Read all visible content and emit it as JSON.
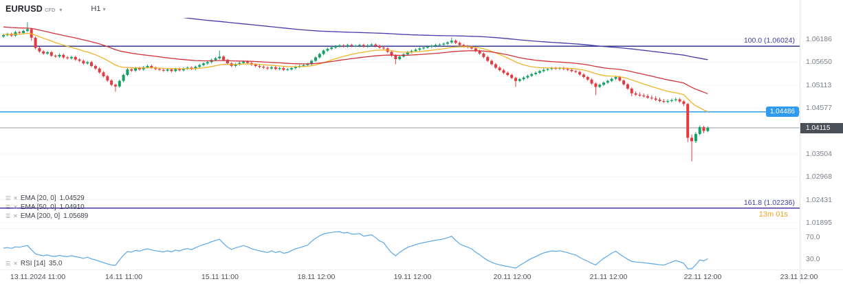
{
  "header": {
    "symbol": "EURUSD",
    "symbol_type": "CFD",
    "timeframe": "H1"
  },
  "price_axis": {
    "scale": [
      "1.06186",
      "1.05650",
      "1.05113",
      "1.04577",
      "1.03504",
      "1.02968",
      "1.02431",
      "1.01895"
    ],
    "current_price": "1.04115",
    "alert_price": "1.04486"
  },
  "rsi_axis": {
    "scale": [
      "70.0",
      "30.0"
    ]
  },
  "time_axis": {
    "labels": [
      "13.11.2024 11:00",
      "14.11 11:00",
      "15.11 11:00",
      "18.11 12:00",
      "19.11 12:00",
      "20.11 12:00",
      "21.11 12:00",
      "22.11 12:00",
      "23.11 12:00"
    ]
  },
  "indicators": [
    {
      "label": "EMA [20, 0]",
      "value": "1.04529"
    },
    {
      "label": "EMA [50, 0]",
      "value": "1.04910"
    },
    {
      "label": "EMA [200, 0]",
      "value": "1.05689"
    }
  ],
  "rsi_legend": {
    "label": "RSI [14]",
    "value": "35.0"
  },
  "levels_labels": {
    "fib_100": "100.0 (1.06024)",
    "fib_161": "161.8 (1.02236)"
  },
  "countdown": "13m 01s",
  "colors": {
    "candle_up": "#12a065",
    "candle_down": "#e23a3f",
    "accent_blue": "#2e9bf0",
    "badge_dark": "#4b4f58",
    "fib_navy": "#3c3f9e",
    "countdown_orange": "#f6a11a"
  },
  "chart_data": {
    "type": "candlestick",
    "title": "EURUSD CFD H1",
    "x_axis_labels": [
      "13.11.2024 11:00",
      "14.11 11:00",
      "15.11 11:00",
      "18.11 12:00",
      "19.11 12:00",
      "20.11 12:00",
      "21.11 12:00",
      "22.11 12:00",
      "23.11 12:00"
    ],
    "y_axis_ticks": [
      1.06186,
      1.0565,
      1.05113,
      1.04577,
      1.04115,
      1.03504,
      1.02968,
      1.02431,
      1.01895
    ],
    "candles": [
      [
        1.0625,
        1.0631,
        1.0622,
        1.0628
      ],
      [
        1.0628,
        1.0634,
        1.0625,
        1.0631
      ],
      [
        1.0631,
        1.0634,
        1.0624,
        1.0627
      ],
      [
        1.0627,
        1.0638,
        1.0624,
        1.0635
      ],
      [
        1.0635,
        1.0638,
        1.063,
        1.0633
      ],
      [
        1.0633,
        1.0641,
        1.063,
        1.0638
      ],
      [
        1.0638,
        1.0658,
        1.0635,
        1.0642
      ],
      [
        1.0642,
        1.0645,
        1.0615,
        1.0622
      ],
      [
        1.0622,
        1.0625,
        1.0595,
        1.0598
      ],
      [
        1.0598,
        1.0601,
        1.0587,
        1.059
      ],
      [
        1.059,
        1.0593,
        1.0582,
        1.0585
      ],
      [
        1.0585,
        1.0591,
        1.0582,
        1.0588
      ],
      [
        1.0588,
        1.0591,
        1.0577,
        1.058
      ],
      [
        1.058,
        1.0583,
        1.0575,
        1.0578
      ],
      [
        1.0578,
        1.0585,
        1.0575,
        1.0582
      ],
      [
        1.0582,
        1.0585,
        1.0573,
        1.0576
      ],
      [
        1.0576,
        1.0579,
        1.0571,
        1.0574
      ],
      [
        1.0574,
        1.058,
        1.0571,
        1.0577
      ],
      [
        1.0577,
        1.058,
        1.0568,
        1.0571
      ],
      [
        1.0571,
        1.0574,
        1.0565,
        1.0568
      ],
      [
        1.0568,
        1.0571,
        1.0559,
        1.0562
      ],
      [
        1.0562,
        1.0568,
        1.0559,
        1.0565
      ],
      [
        1.0565,
        1.0568,
        1.0553,
        1.0556
      ],
      [
        1.0556,
        1.0559,
        1.0547,
        1.055
      ],
      [
        1.055,
        1.0553,
        1.0538,
        1.0541
      ],
      [
        1.0541,
        1.0544,
        1.0529,
        1.0532
      ],
      [
        1.0532,
        1.0535,
        1.0519,
        1.0522
      ],
      [
        1.0522,
        1.0525,
        1.0509,
        1.0512
      ],
      [
        1.0512,
        1.0515,
        1.0496,
        1.0508
      ],
      [
        1.0508,
        1.0524,
        1.0505,
        1.0521
      ],
      [
        1.0521,
        1.0538,
        1.0518,
        1.0535
      ],
      [
        1.0535,
        1.0551,
        1.0532,
        1.0548
      ],
      [
        1.0548,
        1.0551,
        1.0542,
        1.0545
      ],
      [
        1.0545,
        1.0554,
        1.0542,
        1.0551
      ],
      [
        1.0551,
        1.0554,
        1.0545,
        1.0548
      ],
      [
        1.0548,
        1.0556,
        1.0545,
        1.0553
      ],
      [
        1.0553,
        1.0559,
        1.055,
        1.0556
      ],
      [
        1.0556,
        1.0559,
        1.0549,
        1.0552
      ],
      [
        1.0552,
        1.0555,
        1.0546,
        1.0549
      ],
      [
        1.0549,
        1.0552,
        1.0544,
        1.0547
      ],
      [
        1.0547,
        1.055,
        1.0542,
        1.0545
      ],
      [
        1.0545,
        1.0551,
        1.0542,
        1.0548
      ],
      [
        1.0548,
        1.0551,
        1.0541,
        1.0544
      ],
      [
        1.0544,
        1.0552,
        1.0541,
        1.0549
      ],
      [
        1.0549,
        1.0552,
        1.0543,
        1.0546
      ],
      [
        1.0546,
        1.0553,
        1.0543,
        1.055
      ],
      [
        1.055,
        1.0555,
        1.0547,
        1.0552
      ],
      [
        1.0552,
        1.0555,
        1.0546,
        1.0549
      ],
      [
        1.0549,
        1.0557,
        1.0546,
        1.0554
      ],
      [
        1.0554,
        1.0561,
        1.0551,
        1.0558
      ],
      [
        1.0558,
        1.0565,
        1.0555,
        1.0562
      ],
      [
        1.0562,
        1.0568,
        1.0559,
        1.0565
      ],
      [
        1.0565,
        1.0573,
        1.0562,
        1.057
      ],
      [
        1.057,
        1.0577,
        1.0567,
        1.0574
      ],
      [
        1.0574,
        1.0592,
        1.0571,
        1.0578
      ],
      [
        1.0578,
        1.0581,
        1.0567,
        1.057
      ],
      [
        1.057,
        1.0573,
        1.0559,
        1.0562
      ],
      [
        1.0562,
        1.0565,
        1.0553,
        1.0556
      ],
      [
        1.0556,
        1.0563,
        1.0553,
        1.056
      ],
      [
        1.056,
        1.0566,
        1.0557,
        1.0563
      ],
      [
        1.0563,
        1.0569,
        1.056,
        1.0566
      ],
      [
        1.0566,
        1.0569,
        1.056,
        1.0563
      ],
      [
        1.0563,
        1.0566,
        1.0556,
        1.0559
      ],
      [
        1.0559,
        1.0562,
        1.0553,
        1.0556
      ],
      [
        1.0556,
        1.0559,
        1.0551,
        1.0554
      ],
      [
        1.0554,
        1.0557,
        1.0549,
        1.0552
      ],
      [
        1.0552,
        1.0555,
        1.0547,
        1.055
      ],
      [
        1.055,
        1.0556,
        1.0547,
        1.0553
      ],
      [
        1.0553,
        1.0556,
        1.0546,
        1.0549
      ],
      [
        1.0549,
        1.0554,
        1.0546,
        1.0551
      ],
      [
        1.0551,
        1.0554,
        1.0544,
        1.0547
      ],
      [
        1.0547,
        1.0551,
        1.0544,
        1.0548
      ],
      [
        1.0548,
        1.0554,
        1.0545,
        1.0551
      ],
      [
        1.0551,
        1.0557,
        1.0548,
        1.0554
      ],
      [
        1.0554,
        1.0559,
        1.0551,
        1.0556
      ],
      [
        1.0556,
        1.0561,
        1.0553,
        1.0558
      ],
      [
        1.0558,
        1.0563,
        1.0555,
        1.056
      ],
      [
        1.056,
        1.0571,
        1.0557,
        1.0568
      ],
      [
        1.0568,
        1.0579,
        1.0565,
        1.0576
      ],
      [
        1.0576,
        1.0587,
        1.0573,
        1.0584
      ],
      [
        1.0584,
        1.0595,
        1.0581,
        1.0592
      ],
      [
        1.0592,
        1.0599,
        1.0589,
        1.0596
      ],
      [
        1.0596,
        1.0602,
        1.0593,
        1.0599
      ],
      [
        1.0599,
        1.0605,
        1.0596,
        1.0602
      ],
      [
        1.0602,
        1.0607,
        1.0599,
        1.0604
      ],
      [
        1.0604,
        1.0607,
        1.0599,
        1.0602
      ],
      [
        1.0602,
        1.0608,
        1.0599,
        1.0605
      ],
      [
        1.0605,
        1.0608,
        1.06,
        1.0603
      ],
      [
        1.0603,
        1.0606,
        1.06,
        1.0603
      ],
      [
        1.0603,
        1.0608,
        1.06,
        1.0605
      ],
      [
        1.0605,
        1.0608,
        1.0599,
        1.0602
      ],
      [
        1.0602,
        1.0607,
        1.0599,
        1.0604
      ],
      [
        1.0604,
        1.0609,
        1.0601,
        1.0606
      ],
      [
        1.0606,
        1.0609,
        1.06,
        1.0603
      ],
      [
        1.0603,
        1.0606,
        1.0596,
        1.0599
      ],
      [
        1.0599,
        1.0602,
        1.0594,
        1.0597
      ],
      [
        1.0597,
        1.06,
        1.0586,
        1.0589
      ],
      [
        1.0589,
        1.0592,
        1.0577,
        1.058
      ],
      [
        1.058,
        1.0583,
        1.056,
        1.0572
      ],
      [
        1.0572,
        1.0581,
        1.0569,
        1.0578
      ],
      [
        1.0578,
        1.0586,
        1.0575,
        1.0583
      ],
      [
        1.0583,
        1.0591,
        1.058,
        1.0588
      ],
      [
        1.0588,
        1.0594,
        1.0585,
        1.0591
      ],
      [
        1.0591,
        1.0597,
        1.0588,
        1.0594
      ],
      [
        1.0594,
        1.06,
        1.0591,
        1.0597
      ],
      [
        1.0597,
        1.0602,
        1.0594,
        1.0599
      ],
      [
        1.0599,
        1.0604,
        1.0596,
        1.0601
      ],
      [
        1.0601,
        1.0606,
        1.0598,
        1.0603
      ],
      [
        1.0603,
        1.0608,
        1.06,
        1.0605
      ],
      [
        1.0605,
        1.0609,
        1.0602,
        1.0606
      ],
      [
        1.0606,
        1.0611,
        1.0603,
        1.0608
      ],
      [
        1.0608,
        1.0614,
        1.0605,
        1.0611
      ],
      [
        1.0611,
        1.0622,
        1.0608,
        1.0615
      ],
      [
        1.0615,
        1.0618,
        1.0607,
        1.061
      ],
      [
        1.061,
        1.0613,
        1.0602,
        1.0605
      ],
      [
        1.0605,
        1.0608,
        1.0599,
        1.0602
      ],
      [
        1.0602,
        1.0605,
        1.0597,
        1.06
      ],
      [
        1.06,
        1.0603,
        1.0594,
        1.0597
      ],
      [
        1.0597,
        1.06,
        1.0588,
        1.0591
      ],
      [
        1.0591,
        1.0594,
        1.0582,
        1.0585
      ],
      [
        1.0585,
        1.0588,
        1.0574,
        1.0577
      ],
      [
        1.0577,
        1.058,
        1.0565,
        1.0568
      ],
      [
        1.0568,
        1.0571,
        1.0557,
        1.056
      ],
      [
        1.056,
        1.0563,
        1.0549,
        1.0552
      ],
      [
        1.0552,
        1.0555,
        1.0543,
        1.0546
      ],
      [
        1.0546,
        1.0549,
        1.0537,
        1.054
      ],
      [
        1.054,
        1.0543,
        1.0532,
        1.0535
      ],
      [
        1.0535,
        1.0538,
        1.0525,
        1.0528
      ],
      [
        1.0528,
        1.0531,
        1.0507,
        1.0521
      ],
      [
        1.0521,
        1.0528,
        1.0518,
        1.0525
      ],
      [
        1.0525,
        1.0532,
        1.0522,
        1.0529
      ],
      [
        1.0529,
        1.0536,
        1.0526,
        1.0533
      ],
      [
        1.0533,
        1.054,
        1.053,
        1.0537
      ],
      [
        1.0537,
        1.0543,
        1.0534,
        1.054
      ],
      [
        1.054,
        1.0547,
        1.0537,
        1.0544
      ],
      [
        1.0544,
        1.055,
        1.0541,
        1.0547
      ],
      [
        1.0547,
        1.0552,
        1.0544,
        1.0549
      ],
      [
        1.0549,
        1.0554,
        1.0546,
        1.0551
      ],
      [
        1.0551,
        1.0554,
        1.0547,
        1.055
      ],
      [
        1.055,
        1.0554,
        1.0547,
        1.0551
      ],
      [
        1.0551,
        1.0554,
        1.0546,
        1.0549
      ],
      [
        1.0549,
        1.0552,
        1.0544,
        1.0547
      ],
      [
        1.0547,
        1.055,
        1.0541,
        1.0544
      ],
      [
        1.0544,
        1.0547,
        1.0539,
        1.0542
      ],
      [
        1.0542,
        1.0545,
        1.0533,
        1.0536
      ],
      [
        1.0536,
        1.0539,
        1.0527,
        1.053
      ],
      [
        1.053,
        1.0533,
        1.0521,
        1.0524
      ],
      [
        1.0524,
        1.0527,
        1.0512,
        1.0515
      ],
      [
        1.0515,
        1.0518,
        1.0488,
        1.0507
      ],
      [
        1.0507,
        1.0515,
        1.0504,
        1.0512
      ],
      [
        1.0512,
        1.052,
        1.0509,
        1.0517
      ],
      [
        1.0517,
        1.0524,
        1.0514,
        1.0521
      ],
      [
        1.0521,
        1.0529,
        1.0518,
        1.0526
      ],
      [
        1.0526,
        1.0533,
        1.0523,
        1.053
      ],
      [
        1.053,
        1.0533,
        1.0519,
        1.0522
      ],
      [
        1.0522,
        1.0525,
        1.051,
        1.0513
      ],
      [
        1.0513,
        1.0516,
        1.05,
        1.0503
      ],
      [
        1.0503,
        1.0506,
        1.0485,
        1.0492
      ],
      [
        1.0492,
        1.0497,
        1.0486,
        1.0489
      ],
      [
        1.0489,
        1.0494,
        1.0484,
        1.0487
      ],
      [
        1.0487,
        1.0492,
        1.0482,
        1.0485
      ],
      [
        1.0485,
        1.049,
        1.0479,
        1.0482
      ],
      [
        1.0482,
        1.0487,
        1.0477,
        1.048
      ],
      [
        1.048,
        1.0485,
        1.0474,
        1.0477
      ],
      [
        1.0477,
        1.0482,
        1.0471,
        1.0474
      ],
      [
        1.0474,
        1.0479,
        1.0469,
        1.0472
      ],
      [
        1.0472,
        1.0478,
        1.0469,
        1.0474
      ],
      [
        1.0474,
        1.048,
        1.0471,
        1.0476
      ],
      [
        1.0476,
        1.0482,
        1.0473,
        1.0478
      ],
      [
        1.0478,
        1.0481,
        1.047,
        1.0473
      ],
      [
        1.0473,
        1.0476,
        1.0462,
        1.0467
      ],
      [
        1.0467,
        1.047,
        1.0378,
        1.0388
      ],
      [
        1.0388,
        1.0396,
        1.0333,
        1.038
      ],
      [
        1.038,
        1.0401,
        1.0376,
        1.0397
      ],
      [
        1.0397,
        1.0417,
        1.0394,
        1.0413
      ],
      [
        1.0413,
        1.0416,
        1.0399,
        1.0404
      ],
      [
        1.0404,
        1.0415,
        1.0401,
        1.04115
      ]
    ],
    "overlays": {
      "ema": [
        {
          "period": 20,
          "offset": 0,
          "color": "#f0b429",
          "seed": 1.063,
          "current_value": 1.04529
        },
        {
          "period": 50,
          "offset": 0,
          "color": "#cf3338",
          "seed": 1.0648,
          "current_value": 1.0491
        },
        {
          "period": 200,
          "offset": 0,
          "color": "#443aa8",
          "seed": 1.073,
          "current_value": 1.05689
        }
      ],
      "levels": [
        {
          "type": "fib100",
          "label": "100.0 (1.06024)",
          "price": 1.06024,
          "color": "#34388f",
          "width": 1.4
        },
        {
          "type": "fib161",
          "label": "161.8 (1.02236)",
          "price": 1.02236,
          "color": "#4a37a5",
          "width": 1.4
        },
        {
          "type": "alert",
          "label": "1.04486",
          "price": 1.04486,
          "color": "#2e9bf0",
          "width": 1.6
        },
        {
          "type": "last",
          "label": "1.04115",
          "price": 1.04115,
          "color": "#9b9ea6",
          "width": 1
        }
      ]
    },
    "rsi": {
      "period": 14,
      "current_value": 35.0,
      "scale_ticks": [
        70.0,
        30.0
      ],
      "color": "#5aa7e8"
    }
  }
}
